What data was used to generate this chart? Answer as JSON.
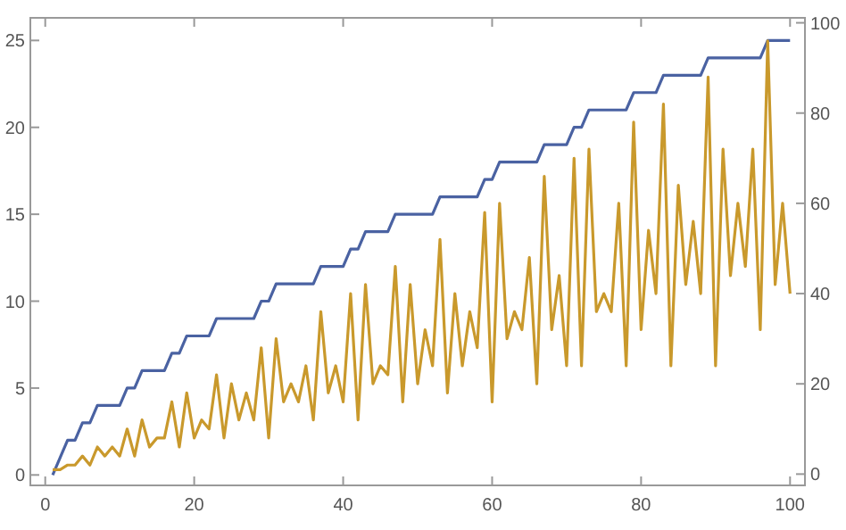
{
  "chart_data": {
    "type": "line",
    "x": [
      1,
      2,
      3,
      4,
      5,
      6,
      7,
      8,
      9,
      10,
      11,
      12,
      13,
      14,
      15,
      16,
      17,
      18,
      19,
      20,
      21,
      22,
      23,
      24,
      25,
      26,
      27,
      28,
      29,
      30,
      31,
      32,
      33,
      34,
      35,
      36,
      37,
      38,
      39,
      40,
      41,
      42,
      43,
      44,
      45,
      46,
      47,
      48,
      49,
      50,
      51,
      52,
      53,
      54,
      55,
      56,
      57,
      58,
      59,
      60,
      61,
      62,
      63,
      64,
      65,
      66,
      67,
      68,
      69,
      70,
      71,
      72,
      73,
      74,
      75,
      76,
      77,
      78,
      79,
      80,
      81,
      82,
      83,
      84,
      85,
      86,
      87,
      88,
      89,
      90,
      91,
      92,
      93,
      94,
      95,
      96,
      97,
      98,
      99,
      100
    ],
    "series": [
      {
        "color": "#4a62a2",
        "values": [
          0,
          1,
          2,
          2,
          3,
          3,
          4,
          4,
          4,
          4,
          5,
          5,
          6,
          6,
          6,
          6,
          7,
          7,
          8,
          8,
          8,
          8,
          9,
          9,
          9,
          9,
          9,
          9,
          10,
          10,
          11,
          11,
          11,
          11,
          11,
          11,
          12,
          12,
          12,
          12,
          13,
          13,
          14,
          14,
          14,
          14,
          15,
          15,
          15,
          15,
          15,
          15,
          16,
          16,
          16,
          16,
          16,
          16,
          17,
          17,
          18,
          18,
          18,
          18,
          18,
          18,
          19,
          19,
          19,
          19,
          20,
          20,
          21,
          21,
          21,
          21,
          21,
          21,
          22,
          22,
          22,
          22,
          23,
          23,
          23,
          23,
          23,
          23,
          24,
          24,
          24,
          24,
          24,
          24,
          24,
          24,
          25,
          25,
          25,
          25
        ]
      },
      {
        "color": "#c9992c",
        "axis": "y2",
        "values": [
          1,
          1,
          2,
          2,
          4,
          2,
          6,
          4,
          6,
          4,
          10,
          4,
          12,
          6,
          8,
          8,
          16,
          6,
          18,
          8,
          12,
          10,
          22,
          8,
          20,
          12,
          18,
          12,
          28,
          8,
          30,
          16,
          20,
          16,
          24,
          12,
          36,
          18,
          24,
          16,
          40,
          12,
          42,
          20,
          24,
          22,
          46,
          16,
          42,
          20,
          32,
          24,
          52,
          18,
          40,
          24,
          36,
          28,
          58,
          16,
          60,
          30,
          36,
          32,
          48,
          20,
          66,
          32,
          44,
          24,
          70,
          24,
          72,
          36,
          40,
          36,
          60,
          24,
          78,
          32,
          54,
          40,
          82,
          24,
          64,
          42,
          56,
          40,
          88,
          24,
          72,
          44,
          60,
          46,
          72,
          32,
          96,
          42,
          60,
          40
        ]
      }
    ],
    "xlim": [
      -2,
      102
    ],
    "xticks": [
      0,
      20,
      40,
      60,
      80,
      100
    ],
    "ylim": [
      -0.6,
      26.3
    ],
    "yticks": [
      0,
      5,
      10,
      15,
      20,
      25
    ],
    "y2lim": [
      -2.5,
      101.1
    ],
    "y2ticks": [
      0,
      20,
      40,
      60,
      80,
      100
    ],
    "marker": "none",
    "line_style": "solid",
    "grid": false
  }
}
